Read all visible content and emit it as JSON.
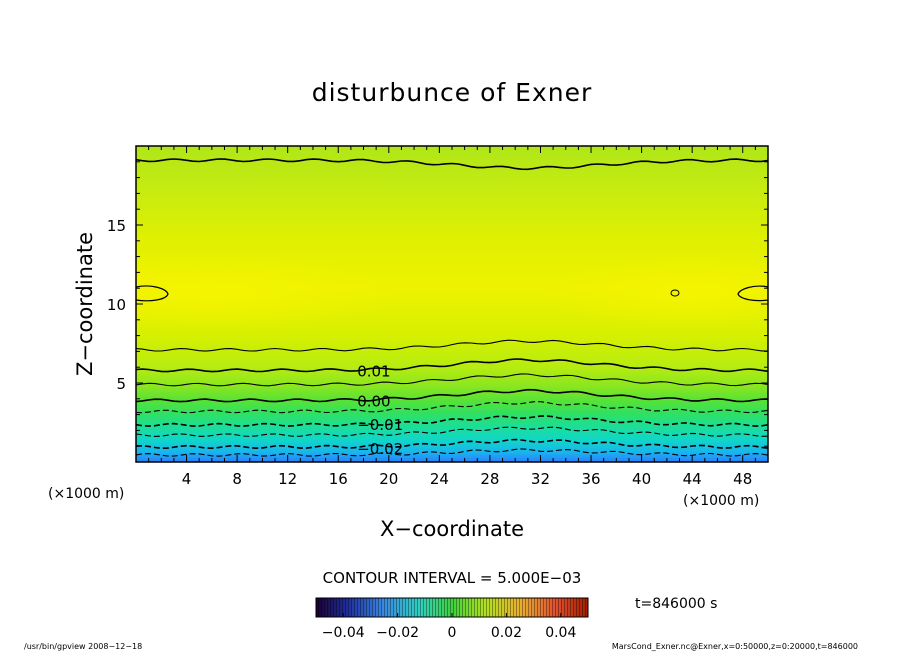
{
  "chart_data": {
    "type": "contour",
    "title": "disturbunce of Exner",
    "xlabel": "X−coordinate",
    "ylabel": "Z−coordinate",
    "x_unit": "(×1000 m)",
    "y_unit": "(×1000 m)",
    "xlim": [
      0,
      50
    ],
    "ylim": [
      0,
      20
    ],
    "x_ticks": [
      4,
      8,
      12,
      16,
      20,
      24,
      28,
      32,
      36,
      40,
      44,
      48
    ],
    "y_ticks": [
      5,
      10,
      15
    ],
    "contour_interval_text": "CONTOUR INTERVAL = 5.000E−03",
    "contour_labels": [
      {
        "text": "0.01",
        "x": 17.5,
        "y": 5.8
      },
      {
        "text": "0.00",
        "x": 17.5,
        "y": 3.9
      },
      {
        "text": "−0.01",
        "x": 17.5,
        "y": 2.4
      },
      {
        "text": "−0.02",
        "x": 17.5,
        "y": 0.9
      }
    ],
    "contours": [
      {
        "level": -0.025,
        "base": 0.45,
        "bump": 0.3
      },
      {
        "level": -0.02,
        "base": 0.95,
        "bump": 0.4
      },
      {
        "level": -0.015,
        "base": 1.7,
        "bump": 0.45
      },
      {
        "level": -0.01,
        "base": 2.35,
        "bump": 0.5
      },
      {
        "level": -0.005,
        "base": 3.2,
        "bump": 0.55
      },
      {
        "level": 0.0,
        "base": 3.9,
        "bump": 0.6
      },
      {
        "level": 0.005,
        "base": 4.9,
        "bump": 0.6
      },
      {
        "level": 0.01,
        "base": 5.8,
        "bump": 0.65
      },
      {
        "level": 0.015,
        "base": 7.1,
        "bump": 0.55
      },
      {
        "level": 0.02,
        "base": 19.1,
        "bump": -0.5
      }
    ],
    "colorbar": {
      "min": -0.05,
      "max": 0.05,
      "tick_values": [
        -0.04,
        -0.02,
        0,
        0.02,
        0.04
      ],
      "tick_labels": [
        "−0.04",
        "−0.02",
        "0",
        "0.02",
        "0.04"
      ]
    },
    "time_label": "t=846000 s"
  },
  "footer": {
    "left": "/usr/bin/gpview   2008−12−18",
    "right": "MarsCond_Exner.nc@Exner,x=0:50000,z=0:20000,t=846000"
  }
}
